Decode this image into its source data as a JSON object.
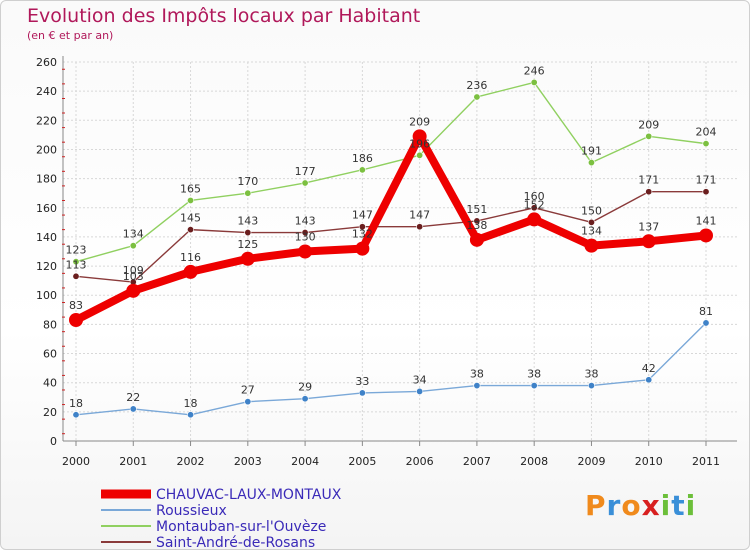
{
  "chart_data": {
    "type": "line",
    "title": "Evolution des Impôts locaux par Habitant",
    "subtitle": "(en € et par an)",
    "xlabel": "",
    "ylabel": "",
    "ylim": [
      0,
      260
    ],
    "yticks": [
      0,
      20,
      40,
      60,
      80,
      100,
      120,
      140,
      160,
      180,
      200,
      220,
      240,
      260
    ],
    "categories": [
      "2000",
      "2001",
      "2002",
      "2003",
      "2004",
      "2005",
      "2006",
      "2007",
      "2008",
      "2009",
      "2010",
      "2011"
    ],
    "grid": true,
    "legend_position": "bottom-left",
    "series": [
      {
        "name": "Montauban-sur-l'Ouvèze",
        "color": "#90d060",
        "marker": "#7cc040",
        "values": [
          123,
          134,
          165,
          170,
          177,
          186,
          196,
          236,
          246,
          191,
          209,
          204
        ],
        "labels": [
          "123",
          "134",
          "165",
          "170",
          "177",
          "186",
          "196",
          "236",
          "246",
          "191",
          "209",
          "204"
        ]
      },
      {
        "name": "Saint-André-de-Rosans",
        "color": "#8a3a3a",
        "marker": "#6a1e1e",
        "values": [
          113,
          109,
          145,
          143,
          143,
          147,
          147,
          151,
          160,
          150,
          171,
          171
        ],
        "labels": [
          "113",
          "109",
          "145",
          "143",
          "143",
          "147",
          "147",
          "151",
          "160",
          "150",
          "171",
          "171"
        ]
      },
      {
        "name": "Roussieux",
        "color": "#7aa8d8",
        "marker": "#3f82c8",
        "values": [
          18,
          22,
          18,
          27,
          29,
          33,
          34,
          38,
          38,
          38,
          42,
          81
        ],
        "labels": [
          "18",
          "22",
          "18",
          "27",
          "29",
          "33",
          "34",
          "38",
          "38",
          "38",
          "42",
          "81"
        ]
      },
      {
        "name": "CHAUVAC-LAUX-MONTAUX",
        "color": "#ee0000",
        "marker": "#ee0000",
        "values": [
          83,
          103,
          116,
          125,
          130,
          132,
          209,
          138,
          152,
          134,
          137,
          141
        ],
        "labels": [
          "83",
          "103",
          "116",
          "125",
          "130",
          "132",
          "209",
          "138",
          "152",
          "134",
          "137",
          "141"
        ]
      }
    ],
    "legend": [
      {
        "name": "CHAUVAC-LAUX-MONTAUX",
        "color": "#ee0000"
      },
      {
        "name": "Roussieux",
        "color": "#7aa8d8"
      },
      {
        "name": "Montauban-sur-l'Ouvèze",
        "color": "#90d060"
      },
      {
        "name": "Saint-André-de-Rosans",
        "color": "#8a3a3a"
      }
    ]
  },
  "logo": {
    "letters": [
      "P",
      "r",
      "o",
      "x",
      "i",
      "t",
      "i"
    ],
    "colors": [
      "#f08a1c",
      "#3a8fd8",
      "#f08a1c",
      "#d82020",
      "#6cbf3a",
      "#3a8fd8",
      "#6cbf3a"
    ]
  }
}
